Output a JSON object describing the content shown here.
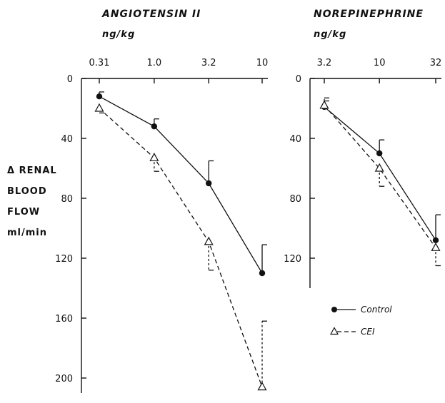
{
  "chart_data": [
    {
      "type": "line",
      "title": "ANGIOTENSIN II",
      "unit_label": "ng/kg",
      "ylabel_lines": [
        "Δ RENAL",
        "BLOOD",
        "FLOW",
        "ml/min"
      ],
      "x_ticks": [
        "0.31",
        "1.0",
        "3.2",
        "10"
      ],
      "x_scale": "log",
      "y_ticks": [
        0,
        40,
        80,
        120,
        160,
        200
      ],
      "ylim": [
        0,
        210
      ],
      "y_inverted": true,
      "series": [
        {
          "name": "Control",
          "marker": "filled-circle",
          "line": "solid",
          "x": [
            "0.31",
            "1.0",
            "3.2",
            "10"
          ],
          "y": [
            12,
            32,
            70,
            130
          ],
          "error_top": [
            9,
            27,
            55,
            111
          ]
        },
        {
          "name": "CEI",
          "marker": "open-triangle",
          "line": "dashed",
          "x": [
            "0.31",
            "1.0",
            "3.2",
            "10"
          ],
          "y": [
            20,
            53,
            109,
            206
          ],
          "error_bottom": [
            23,
            62,
            128,
            162
          ]
        }
      ]
    },
    {
      "type": "line",
      "title": "NOREPINEPHRINE",
      "unit_label": "ng/kg",
      "x_ticks": [
        "3.2",
        "10",
        "32"
      ],
      "x_scale": "log",
      "y_ticks": [
        0,
        40,
        80,
        120
      ],
      "ylim": [
        0,
        140
      ],
      "y_inverted": true,
      "series": [
        {
          "name": "Control",
          "marker": "filled-circle",
          "line": "solid",
          "x": [
            "3.2",
            "10",
            "32"
          ],
          "y": [
            19,
            50,
            108
          ],
          "error_top": [
            15,
            41,
            91
          ]
        },
        {
          "name": "CEI",
          "marker": "open-triangle",
          "line": "dashed",
          "x": [
            "3.2",
            "10",
            "32"
          ],
          "y": [
            18,
            60,
            113
          ],
          "error_bottom": [
            13,
            72,
            125
          ]
        }
      ]
    }
  ],
  "legend": {
    "placement": "bottom-right",
    "items": [
      {
        "label": "Control",
        "marker": "filled-circle",
        "line": "solid"
      },
      {
        "label": "CEI",
        "marker": "open-triangle",
        "line": "dashed"
      }
    ]
  }
}
